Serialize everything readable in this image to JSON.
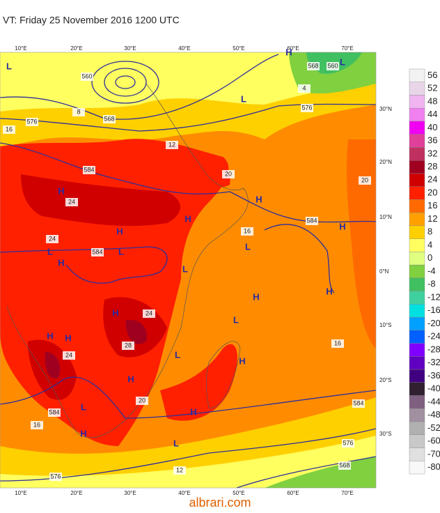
{
  "title": "VT: Friday 25 November 2016 1200 UTC",
  "longitude_labels": [
    "10°E",
    "20°E",
    "30°E",
    "40°E",
    "50°E",
    "60°E",
    "70°E"
  ],
  "latitude_labels": [
    "30°N",
    "20°N",
    "10°N",
    "0°N",
    "10°S",
    "20°S",
    "30°S"
  ],
  "colorbar": {
    "labels": [
      56,
      52,
      48,
      44,
      40,
      36,
      32,
      28,
      24,
      20,
      16,
      12,
      8,
      4,
      0,
      -4,
      -8,
      -12,
      -16,
      -20,
      -24,
      -28,
      -32,
      -36,
      -40,
      -44,
      -48,
      -52,
      -60,
      -70,
      -80
    ],
    "colors": [
      "#f2f2f2",
      "#e8d6e8",
      "#f0b4f0",
      "#f080f0",
      "#f000f0",
      "#e0409a",
      "#c03060",
      "#a00020",
      "#d00000",
      "#ff2000",
      "#ff6a00",
      "#ffa000",
      "#ffd000",
      "#ffff60",
      "#e0ff80",
      "#80d040",
      "#40c060",
      "#40d0a0",
      "#00e0e0",
      "#00a0ff",
      "#0060ff",
      "#8000ff",
      "#6000c0",
      "#400080",
      "#302030",
      "#806080",
      "#a090a0",
      "#b0b0b0",
      "#c8c8c8",
      "#e0e0e0",
      "#f8f8f8"
    ]
  },
  "map_labels": [
    "H",
    "L",
    "L",
    "L",
    "H",
    "H",
    "H",
    "H",
    "H",
    "L",
    "H",
    "L",
    "L",
    "L",
    "H",
    "H",
    "L",
    "H",
    "H",
    "H",
    "L",
    "H",
    "L",
    "H",
    "H",
    "L",
    "H"
  ],
  "contour_labels": [
    "560",
    "568",
    "576",
    "584",
    "16",
    "8",
    "12",
    "20",
    "24",
    "24",
    "584",
    "16",
    "584",
    "576",
    "4",
    "568",
    "560",
    "24",
    "28",
    "24",
    "584",
    "16",
    "20",
    "16",
    "584",
    "576",
    "568",
    "12",
    "576",
    "20"
  ],
  "watermark": "albrari.com"
}
